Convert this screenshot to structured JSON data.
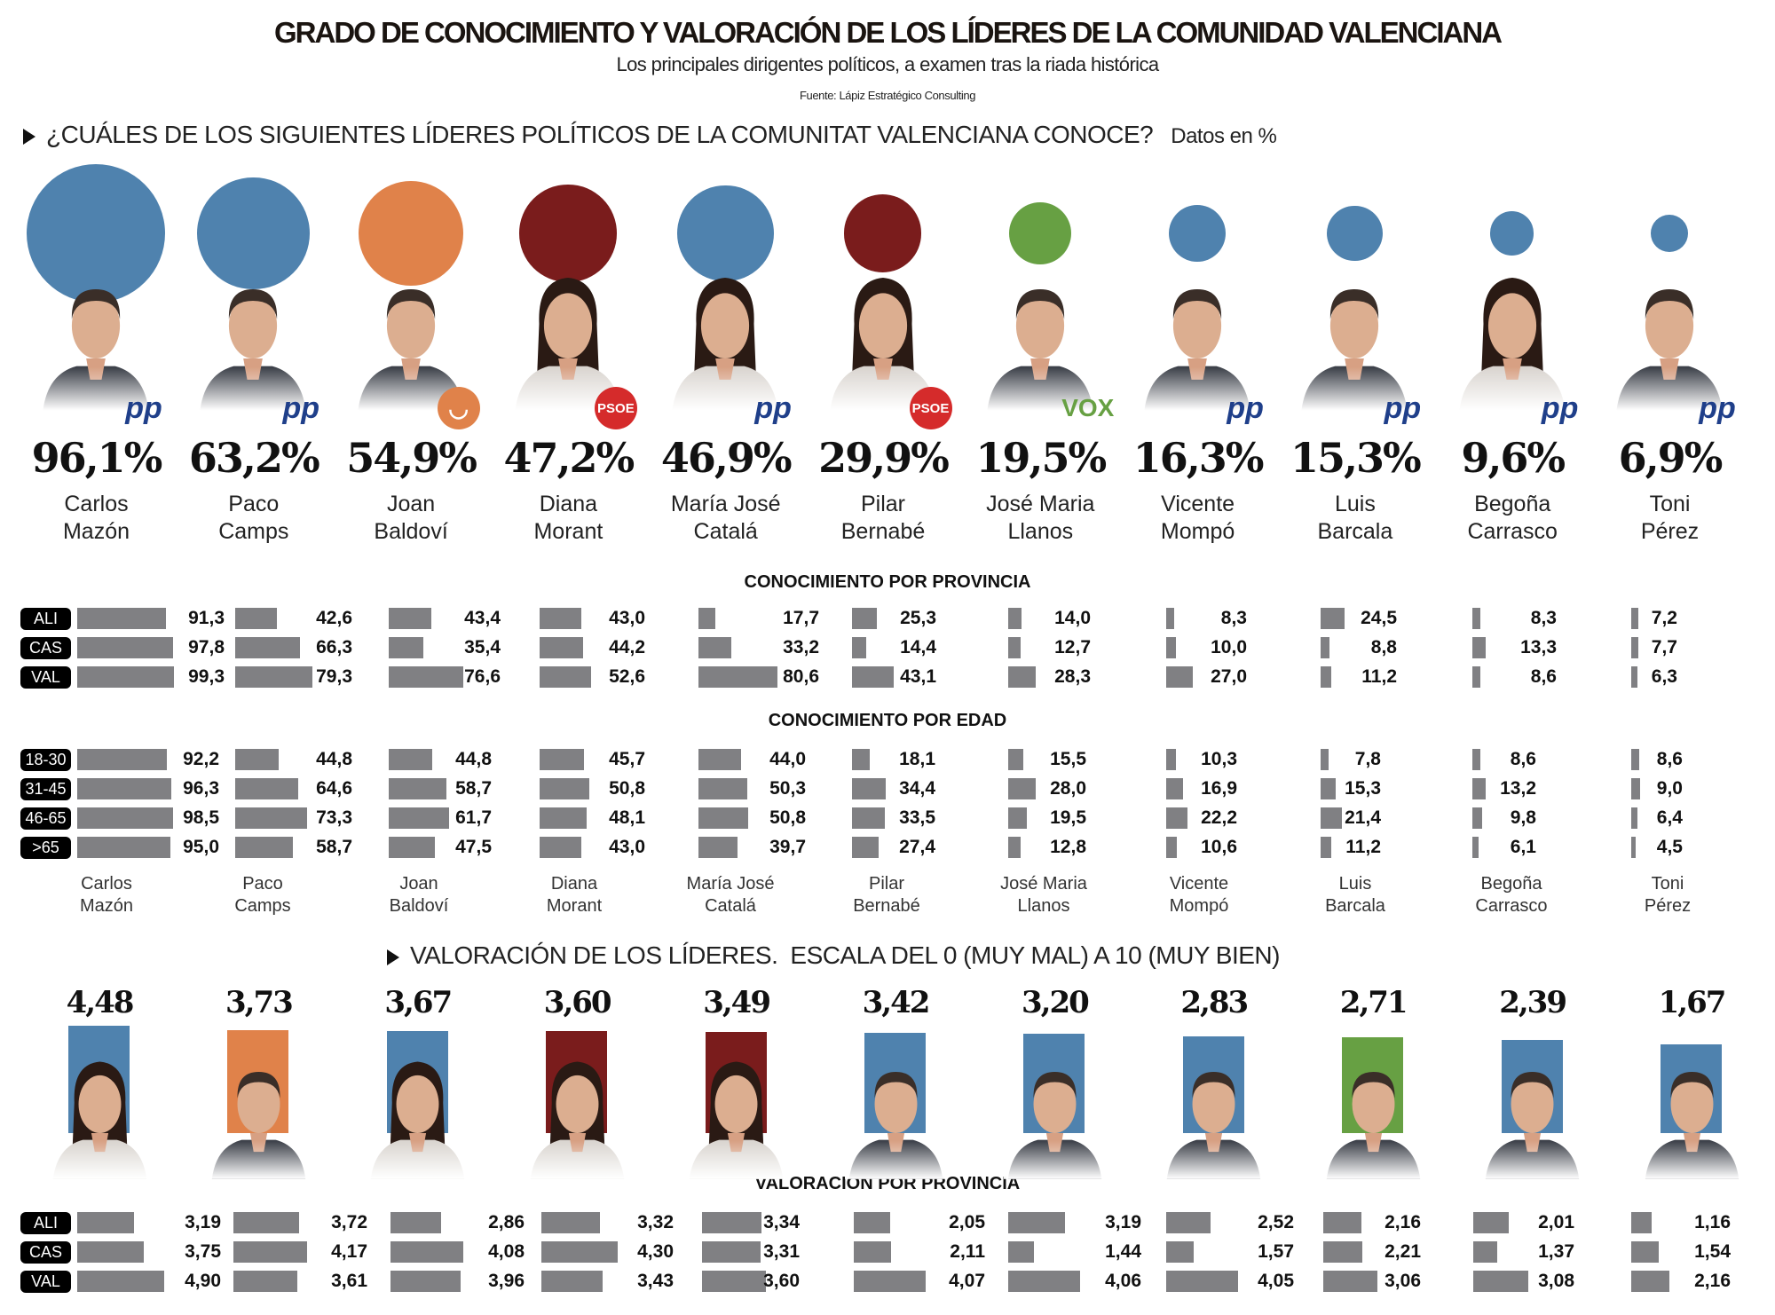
{
  "header": {
    "title": "GRADO DE CONOCIMIENTO Y VALORACIÓN DE LOS LÍDERES DE LA COMUNIDAD VALENCIANA",
    "subtitle": "Los principales dirigentes políticos, a examen tras la riada histórica",
    "source": "Fuente: Lápiz Estratégico Consulting"
  },
  "party_colors": {
    "PP": "#4f82ae",
    "Compromís": "#e0824a",
    "PSOE": "#7a1c1c",
    "Vox": "#67a043"
  },
  "logo_labels": {
    "PP": "pp",
    "PSOE": "PSOE",
    "Vox": "VOX",
    "Compromís": ""
  },
  "chart_data": [
    {
      "type": "bubble",
      "id": "conocimiento",
      "title": "¿CUÁLES DE LOS SIGUIENTES LÍDERES POLÍTICOS DE LA COMUNITAT VALENCIANA CONOCE?",
      "unit_note": "Datos en %",
      "leaders": [
        {
          "first": "Carlos",
          "last": "Mazón",
          "value": 96.1,
          "party": "PP"
        },
        {
          "first": "Paco",
          "last": "Camps",
          "value": 63.2,
          "party": "PP"
        },
        {
          "first": "Joan",
          "last": "Baldoví",
          "value": 54.9,
          "party": "Compromís"
        },
        {
          "first": "Diana",
          "last": "Morant",
          "value": 47.2,
          "party": "PSOE"
        },
        {
          "first": "María José",
          "last": "Catalá",
          "value": 46.9,
          "party": "PP"
        },
        {
          "first": "Pilar",
          "last": "Bernabé",
          "value": 29.9,
          "party": "PSOE"
        },
        {
          "first": "José Maria",
          "last": "Llanos",
          "value": 19.5,
          "party": "Vox"
        },
        {
          "first": "Vicente",
          "last": "Mompó",
          "value": 16.3,
          "party": "PP"
        },
        {
          "first": "Luis",
          "last": "Barcala",
          "value": 15.3,
          "party": "PP"
        },
        {
          "first": "Begoña",
          "last": "Carrasco",
          "value": 9.6,
          "party": "PP"
        },
        {
          "first": "Toni",
          "last": "Pérez",
          "value": 6.9,
          "party": "PP"
        }
      ]
    },
    {
      "type": "bar",
      "id": "provincia",
      "title": "CONOCIMIENTO POR PROVINCIA",
      "rows": [
        "ALI",
        "CAS",
        "VAL"
      ],
      "values": [
        [
          91.3,
          97.8,
          99.3
        ],
        [
          42.6,
          66.3,
          79.3
        ],
        [
          43.4,
          35.4,
          76.6
        ],
        [
          43.0,
          44.2,
          52.6
        ],
        [
          17.7,
          33.2,
          80.6
        ],
        [
          25.3,
          14.4,
          43.1
        ],
        [
          14.0,
          12.7,
          28.3
        ],
        [
          8.3,
          10.0,
          27.0
        ],
        [
          24.5,
          8.8,
          11.2
        ],
        [
          8.3,
          13.3,
          8.6
        ],
        [
          7.2,
          7.7,
          6.3
        ]
      ]
    },
    {
      "type": "bar",
      "id": "edad",
      "title": "CONOCIMIENTO POR EDAD",
      "rows": [
        "18-30",
        "31-45",
        "46-65",
        ">65"
      ],
      "values": [
        [
          92.2,
          96.3,
          98.5,
          95.0
        ],
        [
          44.8,
          64.6,
          73.3,
          58.7
        ],
        [
          44.8,
          58.7,
          61.7,
          47.5
        ],
        [
          45.7,
          50.8,
          48.1,
          43.0
        ],
        [
          44.0,
          50.3,
          50.8,
          39.7
        ],
        [
          18.1,
          34.4,
          33.5,
          27.4
        ],
        [
          15.5,
          28.0,
          19.5,
          12.8
        ],
        [
          10.3,
          16.9,
          22.2,
          10.6
        ],
        [
          7.8,
          15.3,
          21.4,
          11.2
        ],
        [
          8.6,
          13.2,
          9.8,
          6.1
        ],
        [
          8.6,
          9.0,
          6.4,
          4.5
        ]
      ]
    },
    {
      "type": "bar",
      "id": "valoracion",
      "title": "VALORACIÓN DE LOS LÍDERES.",
      "scale_note": "ESCALA DEL 0 (MUY MAL)  A 10 (MUY BIEN)",
      "ylim": [
        0,
        10
      ],
      "values": [
        4.48,
        3.73,
        3.67,
        3.6,
        3.49,
        3.42,
        3.2,
        2.83,
        2.71,
        2.39,
        1.67
      ],
      "parties": [
        "PP",
        "Compromís",
        "PP",
        "PSOE",
        "PSOE",
        "PP",
        "PP",
        "PP",
        "Vox",
        "PP",
        "PP"
      ]
    },
    {
      "type": "bar",
      "id": "valoracion_provincia",
      "title": "VALORACIÓN POR PROVINCIA",
      "rows": [
        "ALI",
        "CAS",
        "VAL"
      ],
      "values": [
        [
          3.19,
          3.75,
          4.9
        ],
        [
          3.72,
          4.17,
          3.61
        ],
        [
          2.86,
          4.08,
          3.96
        ],
        [
          3.32,
          4.3,
          3.43
        ],
        [
          3.34,
          3.31,
          3.6
        ],
        [
          2.05,
          2.11,
          4.07
        ],
        [
          3.19,
          1.44,
          4.06
        ],
        [
          2.52,
          1.57,
          4.05
        ],
        [
          2.16,
          2.21,
          3.06
        ],
        [
          2.01,
          1.37,
          3.08
        ],
        [
          1.16,
          1.54,
          2.16
        ]
      ]
    }
  ]
}
